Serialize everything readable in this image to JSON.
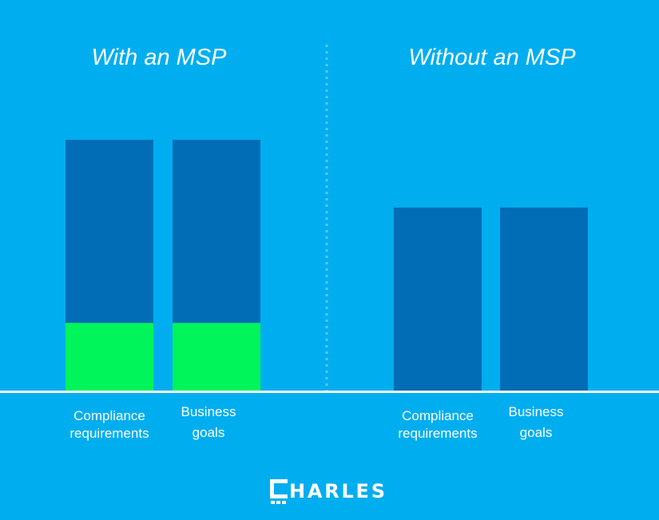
{
  "chart_data": [
    {
      "type": "bar",
      "stacked": true,
      "title": "With an MSP",
      "categories": [
        "Compliance\nrequirements",
        "Business\ngoals"
      ],
      "series": [
        {
          "values": [
            27,
            27
          ],
          "color": "#00F55A"
        },
        {
          "values": [
            73,
            73
          ],
          "color": "#006DB6"
        }
      ],
      "ylim": [
        0,
        100
      ],
      "grid": false
    },
    {
      "type": "bar",
      "stacked": true,
      "title": "Without an MSP",
      "categories": [
        "Compliance\nrequirements",
        "Business\ngoals"
      ],
      "series": [
        {
          "values": [
            73,
            73
          ],
          "color": "#006DB6"
        }
      ],
      "ylim": [
        0,
        100
      ],
      "grid": false
    }
  ],
  "colors": {
    "background": "#00AEEF",
    "baseline": "#FFFFFF",
    "divider": "#4FC3F0"
  },
  "logo": {
    "text": "CHARLES"
  }
}
